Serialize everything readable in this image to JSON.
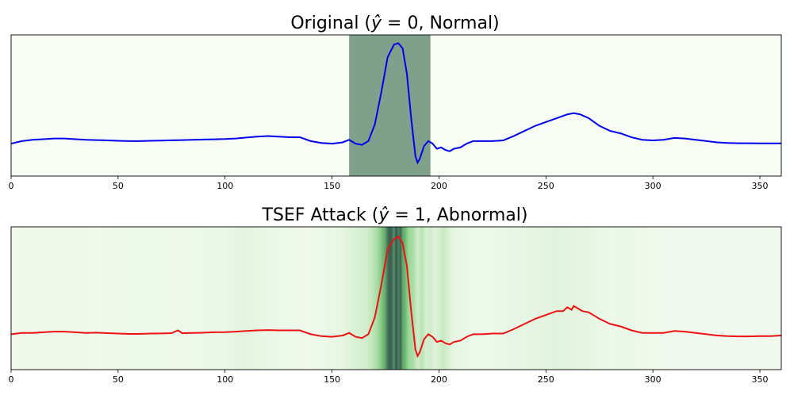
{
  "chart_data": [
    {
      "type": "line",
      "title_main": "Original (",
      "title_yhat": "ŷ",
      "title_eq": " = 0, Normal)",
      "xlim": [
        0,
        360
      ],
      "xticks": [
        0,
        50,
        100,
        150,
        200,
        250,
        300,
        350
      ],
      "xtick_labels": [
        "0",
        "50",
        "100",
        "150",
        "200",
        "250",
        "300",
        "350"
      ],
      "grid": false,
      "background_color": "#f7fcf5",
      "line_color": "#0000ee",
      "highlight": {
        "x_start": 158,
        "x_end": 196,
        "color": "#7fa18b"
      },
      "series": [
        {
          "x": [
            0,
            5,
            10,
            15,
            20,
            25,
            30,
            35,
            40,
            45,
            50,
            55,
            60,
            65,
            70,
            75,
            80,
            85,
            90,
            95,
            100,
            105,
            110,
            115,
            120,
            125,
            130,
            135,
            140,
            145,
            150,
            155,
            158,
            161,
            164,
            167,
            170,
            173,
            176,
            179,
            181,
            183,
            185,
            187,
            189,
            190,
            191,
            193,
            195,
            197,
            199,
            201,
            203,
            205,
            207,
            210,
            213,
            216,
            220,
            225,
            230,
            235,
            240,
            245,
            250,
            255,
            260,
            263,
            266,
            270,
            275,
            280,
            285,
            290,
            295,
            300,
            305,
            310,
            315,
            320,
            325,
            330,
            335,
            340,
            345,
            350,
            355,
            360
          ],
          "y": [
            0.2,
            0.22,
            0.23,
            0.235,
            0.24,
            0.24,
            0.235,
            0.23,
            0.228,
            0.225,
            0.222,
            0.22,
            0.22,
            0.222,
            0.224,
            0.226,
            0.228,
            0.23,
            0.232,
            0.234,
            0.236,
            0.24,
            0.248,
            0.255,
            0.26,
            0.255,
            0.25,
            0.25,
            0.22,
            0.205,
            0.2,
            0.21,
            0.23,
            0.2,
            0.19,
            0.22,
            0.35,
            0.6,
            0.88,
            0.98,
            0.99,
            0.95,
            0.75,
            0.4,
            0.1,
            0.05,
            0.08,
            0.18,
            0.22,
            0.2,
            0.16,
            0.17,
            0.15,
            0.14,
            0.16,
            0.17,
            0.2,
            0.22,
            0.22,
            0.22,
            0.225,
            0.26,
            0.3,
            0.34,
            0.37,
            0.4,
            0.43,
            0.44,
            0.43,
            0.4,
            0.34,
            0.3,
            0.28,
            0.25,
            0.23,
            0.225,
            0.23,
            0.245,
            0.24,
            0.23,
            0.22,
            0.21,
            0.205,
            0.203,
            0.203,
            0.202,
            0.202,
            0.202
          ]
        }
      ]
    },
    {
      "type": "line",
      "title_main": "TSEF Attack (",
      "title_yhat": "ŷ",
      "title_eq": " = 1, Abnormal)",
      "xlim": [
        0,
        360
      ],
      "xticks": [
        0,
        50,
        100,
        150,
        200,
        250,
        300,
        350
      ],
      "xtick_labels": [
        "0",
        "50",
        "100",
        "150",
        "200",
        "250",
        "300",
        "350"
      ],
      "grid": false,
      "background_color": "#f7fcf5",
      "line_color": "#ee1111",
      "heatmap": {
        "x": [
          0,
          20,
          40,
          60,
          80,
          100,
          110,
          115,
          120,
          140,
          155,
          160,
          165,
          168,
          171,
          173,
          175,
          176,
          177,
          178,
          179,
          180,
          181,
          182,
          183,
          184,
          185,
          186,
          188,
          190,
          192,
          194,
          196,
          198,
          200,
          202,
          204,
          206,
          210,
          220,
          230,
          240,
          250,
          255,
          260,
          265,
          270,
          280,
          290,
          300,
          320,
          340,
          360
        ],
        "v": [
          0.05,
          0.06,
          0.05,
          0.07,
          0.06,
          0.08,
          0.12,
          0.1,
          0.08,
          0.05,
          0.1,
          0.18,
          0.22,
          0.3,
          0.4,
          0.55,
          0.7,
          0.85,
          0.92,
          0.88,
          0.75,
          0.95,
          0.8,
          0.9,
          0.7,
          0.65,
          0.55,
          0.45,
          0.4,
          0.25,
          0.35,
          0.2,
          0.25,
          0.15,
          0.2,
          0.28,
          0.22,
          0.12,
          0.08,
          0.06,
          0.08,
          0.1,
          0.12,
          0.14,
          0.13,
          0.12,
          0.1,
          0.07,
          0.08,
          0.05,
          0.04,
          0.04,
          0.05
        ]
      },
      "series": [
        {
          "x": [
            0,
            5,
            10,
            15,
            20,
            25,
            30,
            35,
            40,
            45,
            50,
            55,
            60,
            65,
            70,
            75,
            78,
            80,
            85,
            90,
            95,
            100,
            105,
            110,
            115,
            120,
            125,
            130,
            135,
            140,
            145,
            150,
            155,
            158,
            161,
            164,
            167,
            170,
            173,
            176,
            179,
            181,
            183,
            185,
            187,
            189,
            190,
            191,
            193,
            195,
            197,
            199,
            201,
            203,
            205,
            207,
            210,
            213,
            216,
            220,
            225,
            230,
            235,
            240,
            245,
            250,
            255,
            258,
            260,
            262,
            263,
            265,
            267,
            270,
            275,
            280,
            285,
            290,
            295,
            300,
            305,
            310,
            315,
            320,
            325,
            330,
            335,
            340,
            345,
            350,
            355,
            360
          ],
          "y": [
            0.22,
            0.23,
            0.23,
            0.235,
            0.24,
            0.24,
            0.235,
            0.23,
            0.232,
            0.228,
            0.225,
            0.222,
            0.222,
            0.225,
            0.226,
            0.228,
            0.25,
            0.228,
            0.23,
            0.232,
            0.235,
            0.236,
            0.24,
            0.245,
            0.25,
            0.252,
            0.25,
            0.25,
            0.25,
            0.22,
            0.205,
            0.2,
            0.21,
            0.23,
            0.2,
            0.19,
            0.22,
            0.35,
            0.6,
            0.88,
            0.96,
            0.98,
            0.93,
            0.75,
            0.4,
            0.1,
            0.05,
            0.08,
            0.18,
            0.22,
            0.2,
            0.16,
            0.17,
            0.15,
            0.14,
            0.16,
            0.17,
            0.2,
            0.22,
            0.22,
            0.225,
            0.225,
            0.26,
            0.3,
            0.34,
            0.37,
            0.4,
            0.4,
            0.43,
            0.41,
            0.44,
            0.42,
            0.4,
            0.39,
            0.34,
            0.3,
            0.28,
            0.25,
            0.23,
            0.23,
            0.23,
            0.245,
            0.24,
            0.23,
            0.22,
            0.21,
            0.205,
            0.203,
            0.203,
            0.205,
            0.205,
            0.21
          ]
        }
      ]
    }
  ]
}
